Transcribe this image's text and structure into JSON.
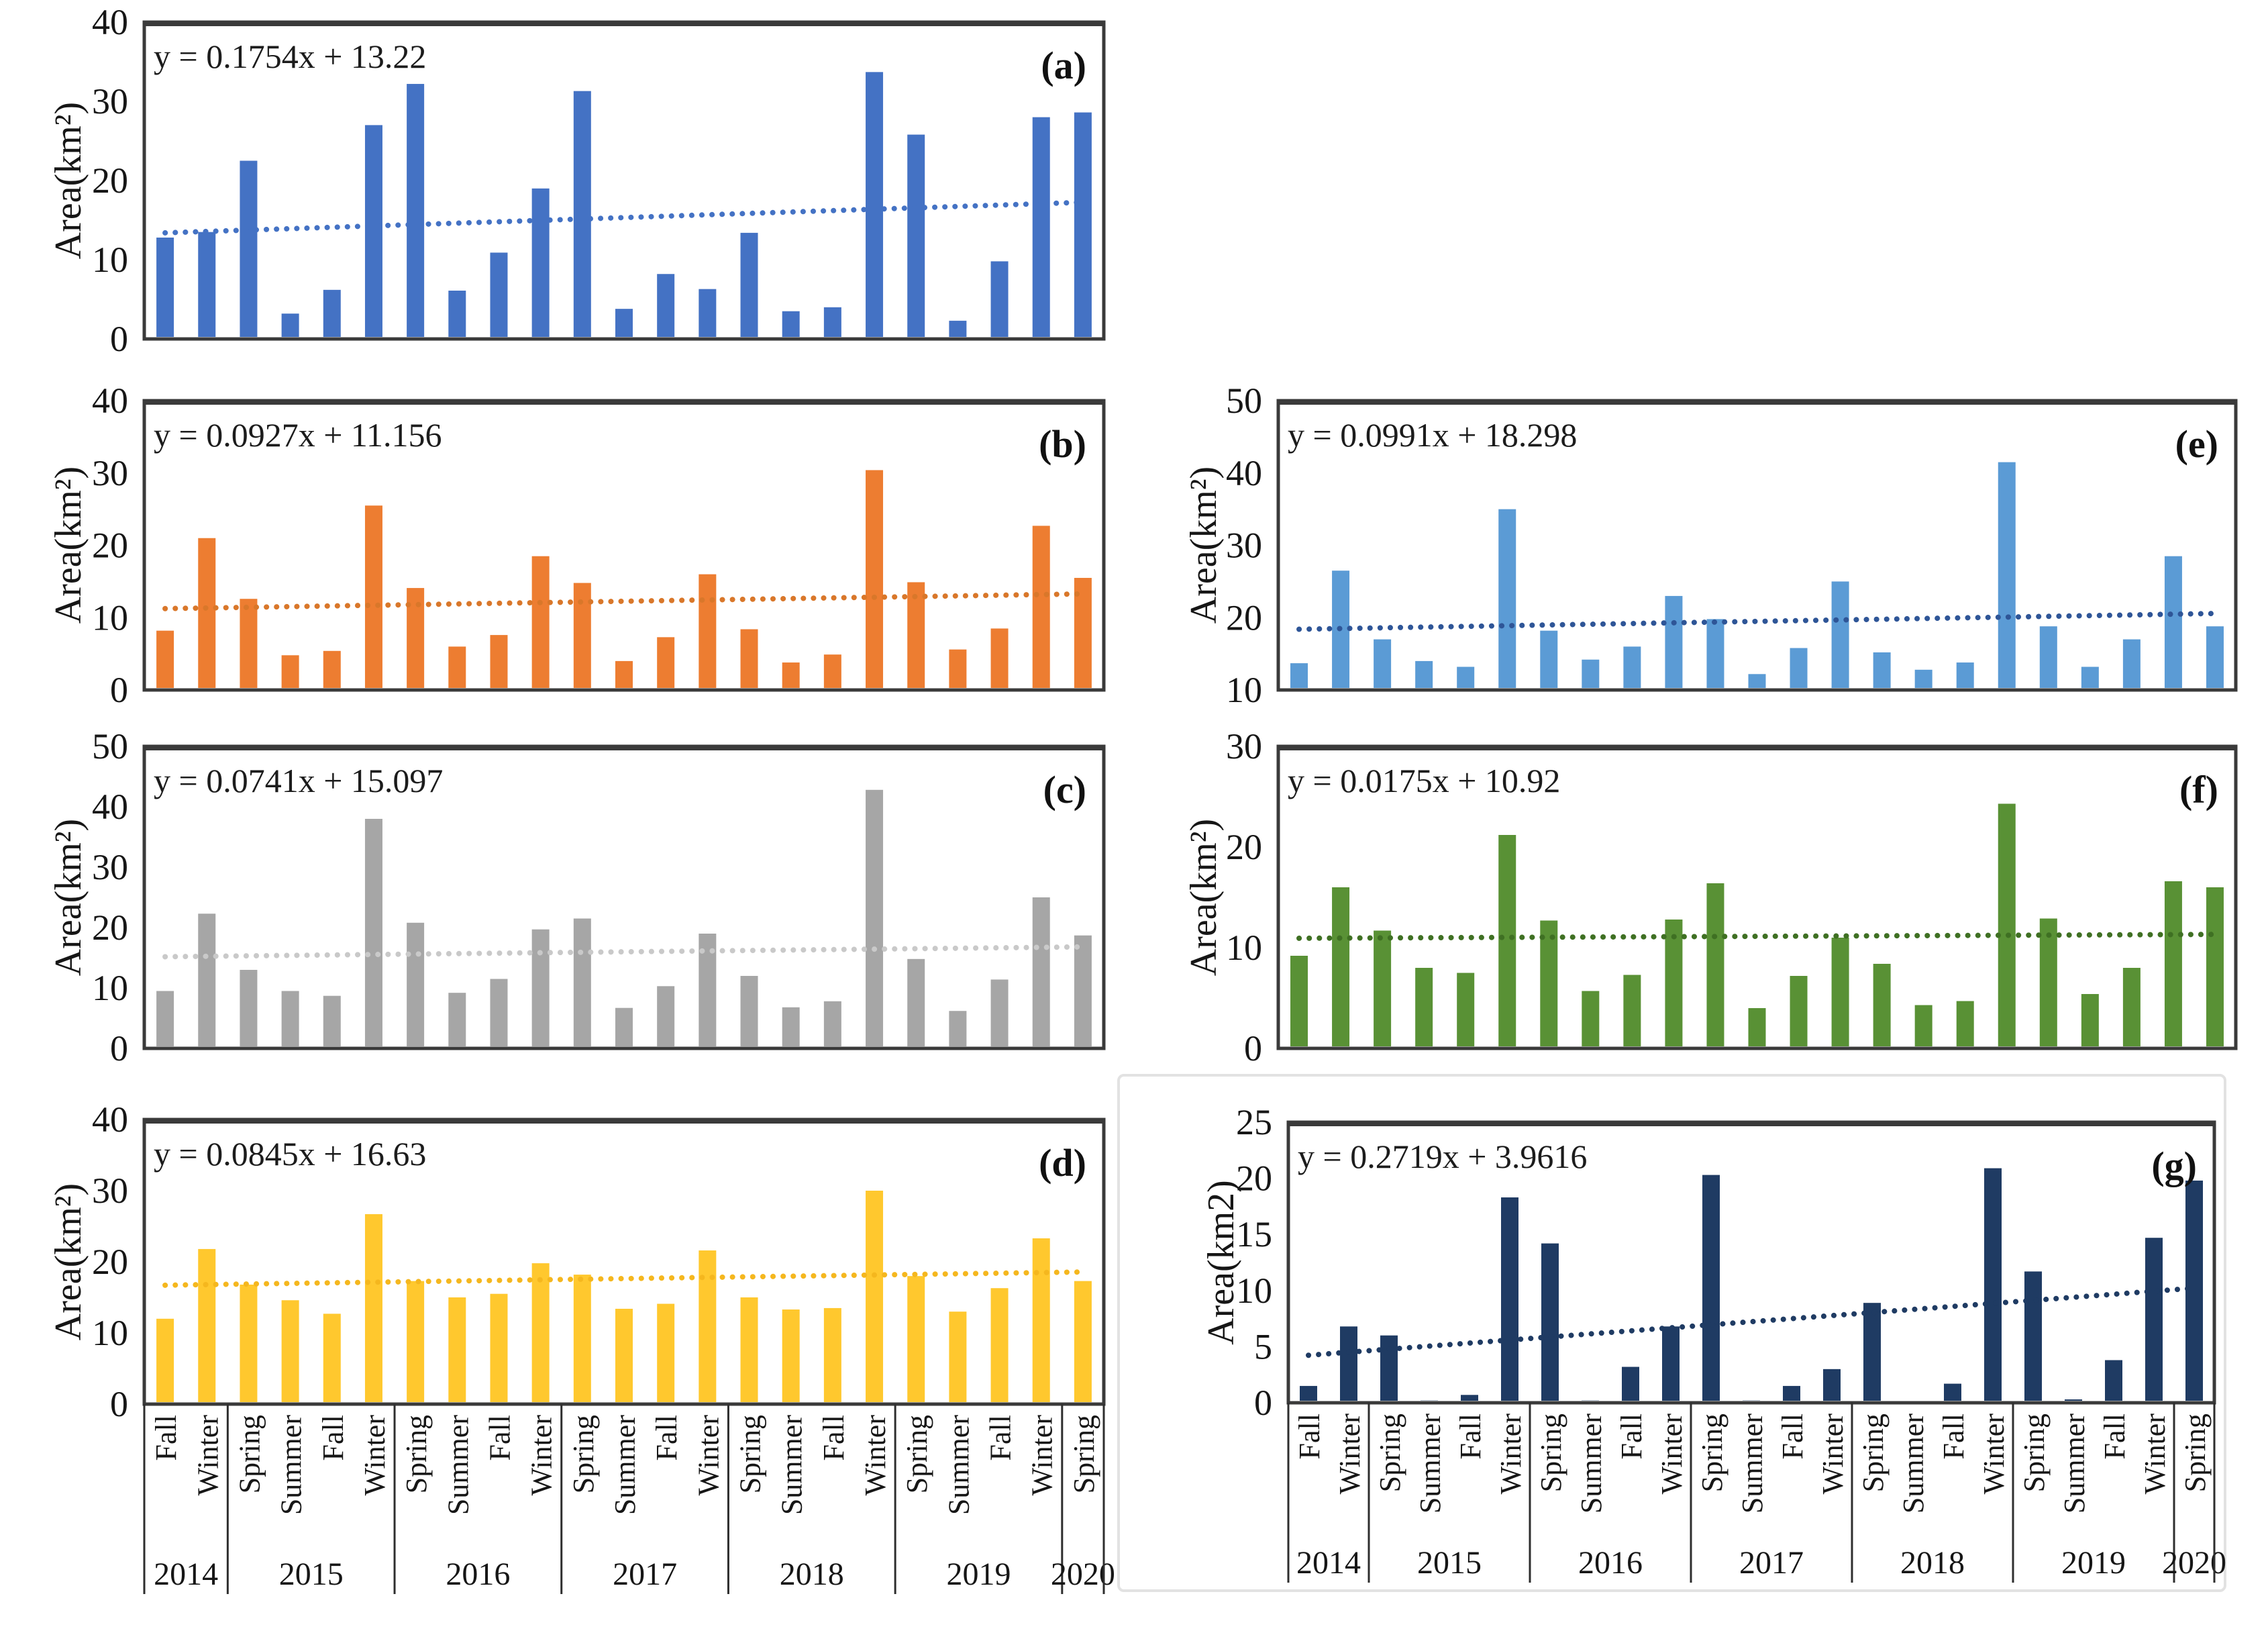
{
  "figure": {
    "background": "#ffffff"
  },
  "x_axis": {
    "seasons": [
      "Fall",
      "Winter",
      "Spring",
      "Summer",
      "Fall",
      "Winter",
      "Spring",
      "Summer",
      "Fall",
      "Winter",
      "Spring",
      "Summer",
      "Fall",
      "Winter",
      "Spring",
      "Summer",
      "Fall",
      "Winter",
      "Spring",
      "Summer",
      "Fall",
      "Winter",
      "Spring"
    ],
    "year_groups": [
      {
        "label": "2014",
        "start": 0,
        "count": 2
      },
      {
        "label": "2015",
        "start": 2,
        "count": 4
      },
      {
        "label": "2016",
        "start": 6,
        "count": 4
      },
      {
        "label": "2017",
        "start": 10,
        "count": 4
      },
      {
        "label": "2018",
        "start": 14,
        "count": 4
      },
      {
        "label": "2019",
        "start": 18,
        "count": 4
      },
      {
        "label": "2020",
        "start": 22,
        "count": 1
      }
    ]
  },
  "chart_data": [
    {
      "id": "a",
      "type": "bar",
      "panel_label": "(a)",
      "equation": "y = 0.1754x + 13.22",
      "trend": {
        "slope": 0.1754,
        "intercept": 13.22
      },
      "ylabel": "Area(km²)",
      "ylim": [
        0,
        40
      ],
      "yticks": [
        0,
        10,
        20,
        30,
        40
      ],
      "bar_color": "#4472c4",
      "trend_color": "#4472c4",
      "show_x_labels": false,
      "values": [
        12.8,
        13.5,
        22.5,
        3.2,
        6.2,
        27,
        32.2,
        6.1,
        10.9,
        19,
        31.3,
        3.8,
        8.2,
        6.3,
        13.4,
        3.5,
        4,
        33.7,
        25.8,
        2.3,
        9.8,
        28,
        28.6
      ]
    },
    {
      "id": "b",
      "type": "bar",
      "panel_label": "(b)",
      "equation": "y = 0.0927x + 11.156",
      "trend": {
        "slope": 0.0927,
        "intercept": 11.156
      },
      "ylabel": "Area(km²)",
      "ylim": [
        0,
        40
      ],
      "yticks": [
        0,
        10,
        20,
        30,
        40
      ],
      "bar_color": "#ed7d31",
      "trend_color": "#d9772a",
      "show_x_labels": false,
      "values": [
        8.2,
        21,
        12.6,
        4.8,
        5.4,
        25.5,
        14.1,
        6,
        7.6,
        18.5,
        14.8,
        4,
        7.3,
        16,
        8.4,
        3.8,
        4.9,
        30.4,
        14.9,
        5.6,
        8.5,
        22.7,
        15.5
      ]
    },
    {
      "id": "c",
      "type": "bar",
      "panel_label": "(c)",
      "equation": "y = 0.0741x + 15.097",
      "trend": {
        "slope": 0.0741,
        "intercept": 15.097
      },
      "ylabel": "Area(km²)",
      "ylim": [
        0,
        50
      ],
      "yticks": [
        0,
        10,
        20,
        30,
        40,
        50
      ],
      "bar_color": "#a6a6a6",
      "trend_color": "#c9c9c9",
      "show_x_labels": false,
      "values": [
        9.5,
        22.3,
        13,
        9.5,
        8.7,
        38,
        20.8,
        9.2,
        11.5,
        19.7,
        21.5,
        6.7,
        10.3,
        19,
        12,
        6.8,
        7.8,
        42.8,
        14.8,
        6.2,
        11.4,
        25,
        18.7
      ]
    },
    {
      "id": "d",
      "type": "bar",
      "panel_label": "(d)",
      "equation": "y = 0.0845x + 16.63",
      "trend": {
        "slope": 0.0845,
        "intercept": 16.63
      },
      "ylabel": "Area(km²)",
      "ylim": [
        0,
        40
      ],
      "yticks": [
        0,
        10,
        20,
        30,
        40
      ],
      "bar_color": "#ffc82e",
      "trend_color": "#f5b71e",
      "show_x_labels": true,
      "values": [
        12,
        21.8,
        16.8,
        14.6,
        12.7,
        26.7,
        17.3,
        15,
        15.5,
        19.8,
        18.2,
        13.4,
        14.1,
        21.6,
        15,
        13.3,
        13.5,
        30,
        18,
        13,
        16.3,
        23.3,
        17.3
      ]
    },
    {
      "id": "e",
      "type": "bar",
      "panel_label": "(e)",
      "equation": "y = 0.0991x + 18.298",
      "trend": {
        "slope": 0.0991,
        "intercept": 18.298
      },
      "ylabel": "Area(km²)",
      "ylim": [
        10,
        50
      ],
      "yticks": [
        10,
        20,
        30,
        40,
        50
      ],
      "bar_color": "#5b9bd5",
      "trend_color": "#2e5597",
      "show_x_labels": false,
      "values": [
        13.7,
        26.5,
        17,
        14,
        13.2,
        35,
        18.2,
        14.2,
        16,
        23,
        19.8,
        12.2,
        15.8,
        25,
        15.2,
        12.8,
        13.8,
        41.5,
        18.8,
        13.2,
        17,
        28.5,
        18.8
      ]
    },
    {
      "id": "f",
      "type": "bar",
      "panel_label": "(f)",
      "equation": "y = 0.0175x + 10.92",
      "trend": {
        "slope": 0.0175,
        "intercept": 10.92
      },
      "ylabel": "Area(km²)",
      "ylim": [
        0,
        30
      ],
      "yticks": [
        0,
        10,
        20,
        30
      ],
      "bar_color": "#599135",
      "trend_color": "#3f7023",
      "show_x_labels": false,
      "values": [
        9.2,
        16,
        11.7,
        8,
        7.5,
        21.2,
        12.7,
        5.7,
        7.3,
        12.8,
        16.4,
        4,
        7.2,
        11,
        8.4,
        4.3,
        4.7,
        24.3,
        12.9,
        5.4,
        8,
        16.6,
        16
      ]
    },
    {
      "id": "g",
      "type": "bar",
      "panel_label": "(g)",
      "equation": "y = 0.2719x + 3.9616",
      "trend": {
        "slope": 0.2719,
        "intercept": 3.9616
      },
      "ylabel": "Area(km2)",
      "ylim": [
        0,
        25
      ],
      "yticks": [
        0,
        5,
        10,
        15,
        20,
        25
      ],
      "bar_color": "#1f3b63",
      "trend_color": "#1f3b63",
      "show_x_labels": true,
      "values": [
        1.5,
        6.8,
        6,
        0.2,
        0.7,
        18.3,
        14.2,
        0.2,
        3.2,
        6.8,
        20.3,
        0.2,
        1.5,
        3,
        8.9,
        0.1,
        1.7,
        20.9,
        11.7,
        0.3,
        3.8,
        14.7,
        19.8
      ]
    }
  ]
}
